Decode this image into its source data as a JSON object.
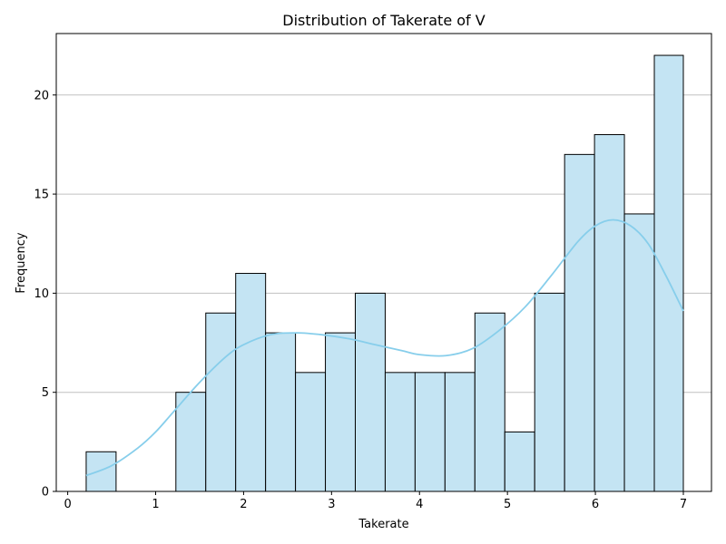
{
  "chart_data": {
    "type": "bar",
    "subtype": "histogram",
    "title": "Distribution of Takerate of V",
    "xlabel": "Takerate",
    "ylabel": "Frequency",
    "bins": [
      {
        "x0": 0.21,
        "x1": 0.55,
        "count": 2
      },
      {
        "x0": 0.55,
        "x1": 0.89,
        "count": 0
      },
      {
        "x0": 0.89,
        "x1": 1.23,
        "count": 0
      },
      {
        "x0": 1.23,
        "x1": 1.57,
        "count": 5
      },
      {
        "x0": 1.57,
        "x1": 1.91,
        "count": 9
      },
      {
        "x0": 1.91,
        "x1": 2.25,
        "count": 11
      },
      {
        "x0": 2.25,
        "x1": 2.59,
        "count": 8
      },
      {
        "x0": 2.59,
        "x1": 2.93,
        "count": 6
      },
      {
        "x0": 2.93,
        "x1": 3.27,
        "count": 8
      },
      {
        "x0": 3.27,
        "x1": 3.61,
        "count": 10
      },
      {
        "x0": 3.61,
        "x1": 3.95,
        "count": 6
      },
      {
        "x0": 3.95,
        "x1": 4.29,
        "count": 6
      },
      {
        "x0": 4.29,
        "x1": 4.63,
        "count": 6
      },
      {
        "x0": 4.63,
        "x1": 4.97,
        "count": 9
      },
      {
        "x0": 4.97,
        "x1": 5.31,
        "count": 3
      },
      {
        "x0": 5.31,
        "x1": 5.65,
        "count": 10
      },
      {
        "x0": 5.65,
        "x1": 5.99,
        "count": 17
      },
      {
        "x0": 5.99,
        "x1": 6.33,
        "count": 18
      },
      {
        "x0": 6.33,
        "x1": 6.67,
        "count": 14
      },
      {
        "x0": 6.67,
        "x1": 7.0,
        "count": 22
      }
    ],
    "kde": {
      "x": [
        0.21,
        0.5,
        0.8,
        1.0,
        1.2,
        1.5,
        1.8,
        2.0,
        2.3,
        2.6,
        2.9,
        3.2,
        3.5,
        3.8,
        4.0,
        4.3,
        4.6,
        4.9,
        5.2,
        5.5,
        5.8,
        6.0,
        6.2,
        6.4,
        6.6,
        6.8,
        7.0
      ],
      "y": [
        0.8,
        1.3,
        2.2,
        3.0,
        4.0,
        5.5,
        6.8,
        7.4,
        7.9,
        8.0,
        7.9,
        7.7,
        7.4,
        7.1,
        6.9,
        6.85,
        7.2,
        8.1,
        9.3,
        10.9,
        12.6,
        13.4,
        13.7,
        13.4,
        12.5,
        10.9,
        9.1
      ]
    },
    "xlim": [
      -0.13,
      7.32
    ],
    "ylim": [
      0,
      23.1
    ],
    "xticks": [
      0,
      1,
      2,
      3,
      4,
      5,
      6,
      7
    ],
    "yticks": [
      0,
      5,
      10,
      15,
      20
    ],
    "grid": "y",
    "colors": {
      "bar_fill": "#c4e4f3",
      "bar_edge": "#000000",
      "kde_line": "#87ceeb",
      "grid": "#c0c0c0"
    }
  }
}
